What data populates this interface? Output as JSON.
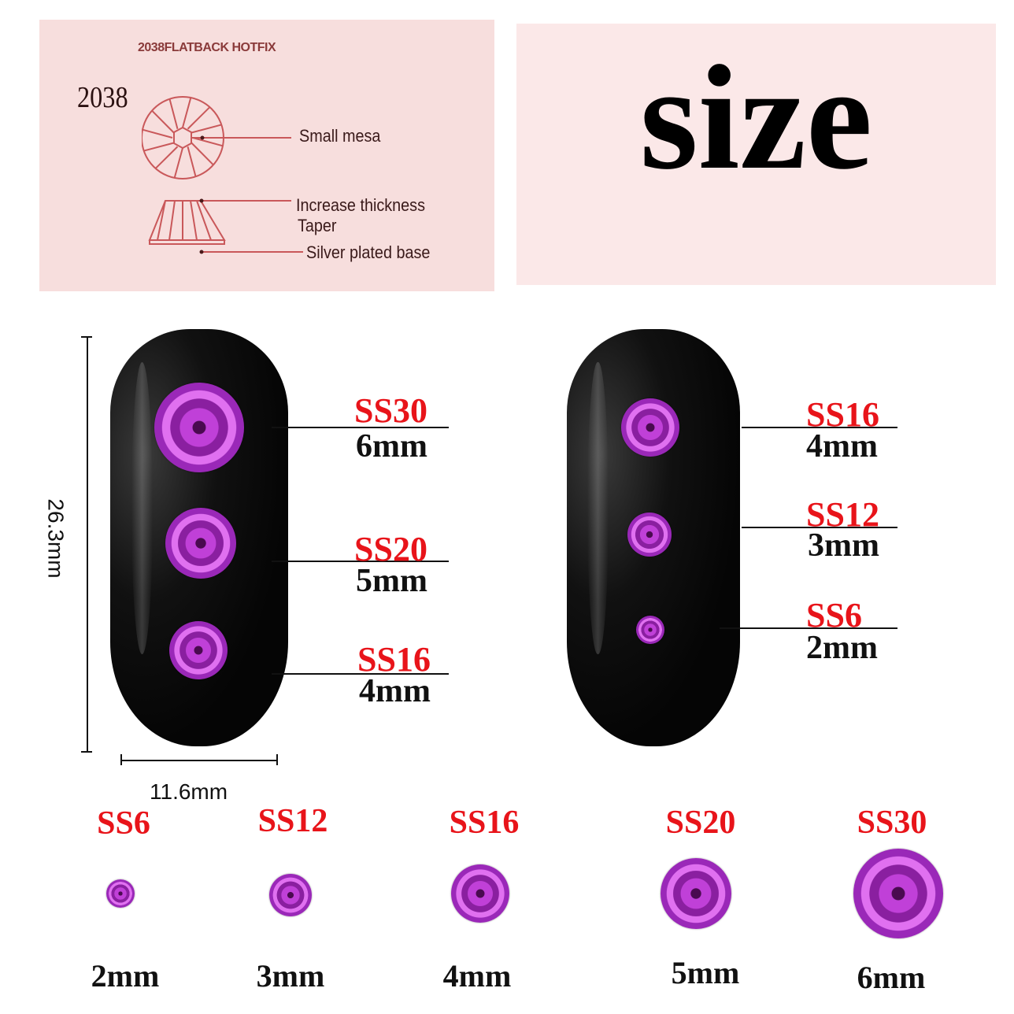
{
  "diagram": {
    "title": "2038FLATBACK HOTFIX",
    "model": "2038",
    "labels": {
      "mesa": "Small mesa",
      "thickness": "Increase thickness",
      "taper": "Taper",
      "base": "Silver plated base"
    }
  },
  "heading": "size",
  "dimensions": {
    "height": "26.3mm",
    "width": "11.6mm"
  },
  "nail_left": [
    {
      "ss": "SS30",
      "mm": "6mm"
    },
    {
      "ss": "SS20",
      "mm": "5mm"
    },
    {
      "ss": "SS16",
      "mm": "4mm"
    }
  ],
  "nail_right": [
    {
      "ss": "SS16",
      "mm": "4mm"
    },
    {
      "ss": "SS12",
      "mm": "3mm"
    },
    {
      "ss": "SS6",
      "mm": "2mm"
    }
  ],
  "sizes": [
    {
      "ss": "SS6",
      "mm": "2mm"
    },
    {
      "ss": "SS12",
      "mm": "3mm"
    },
    {
      "ss": "SS16",
      "mm": "4mm"
    },
    {
      "ss": "SS20",
      "mm": "5mm"
    },
    {
      "ss": "SS30",
      "mm": "6mm"
    }
  ],
  "colors": {
    "label_red": "#e8141a",
    "gem_purple": "#c040d8",
    "panel_pink": "#f7dedd"
  }
}
